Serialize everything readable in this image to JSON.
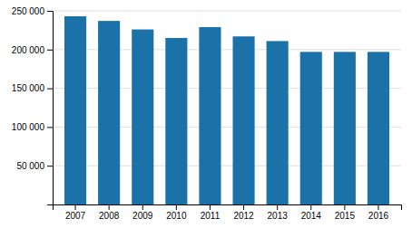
{
  "chart_data": {
    "type": "bar",
    "categories": [
      "2007",
      "2008",
      "2009",
      "2010",
      "2011",
      "2012",
      "2013",
      "2014",
      "2015",
      "2016"
    ],
    "values": [
      243000,
      237000,
      226000,
      215000,
      229000,
      217000,
      211000,
      197000,
      197000,
      197000
    ],
    "color": "#1a72a8",
    "ylim": [
      0,
      250000
    ],
    "yticks": [
      {
        "value": 50000,
        "label": "50 000"
      },
      {
        "value": 100000,
        "label": "100 000"
      },
      {
        "value": 150000,
        "label": "150 000"
      },
      {
        "value": 200000,
        "label": "200 000"
      },
      {
        "value": 250000,
        "label": "250 000"
      }
    ],
    "grid": true
  }
}
